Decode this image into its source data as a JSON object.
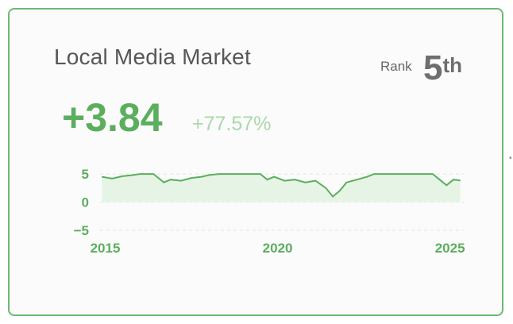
{
  "widget": {
    "title": "Local Media Market",
    "rank_label": "Rank",
    "rank_number": "5",
    "rank_suffix": "th",
    "value": "+3.84",
    "percent_change": "+77.57%"
  },
  "colors": {
    "border": "#6cba6f",
    "accent": "#5bae5e",
    "accent_light": "#a9d8aa",
    "fill": "#e6f4e6"
  },
  "chart_data": {
    "type": "area",
    "yticks": [
      "5",
      "0",
      "−5"
    ],
    "ytick_values": [
      5,
      0,
      -5
    ],
    "xticks": [
      "2015",
      "2020",
      "2025"
    ],
    "xtick_values": [
      2015,
      2020,
      2025
    ],
    "xlim": [
      2014.85,
      2025.4
    ],
    "ylim": [
      -5,
      6
    ],
    "grid": true,
    "series": [
      {
        "points": [
          [
            2014.9,
            4.5
          ],
          [
            2015.2,
            4.2
          ],
          [
            2015.5,
            4.6
          ],
          [
            2015.8,
            4.8
          ],
          [
            2016.0,
            5.0
          ],
          [
            2016.4,
            5.0
          ],
          [
            2016.7,
            3.5
          ],
          [
            2016.9,
            4.0
          ],
          [
            2017.2,
            3.8
          ],
          [
            2017.5,
            4.3
          ],
          [
            2017.8,
            4.5
          ],
          [
            2018.0,
            4.8
          ],
          [
            2018.3,
            5.0
          ],
          [
            2019.5,
            5.0
          ],
          [
            2019.7,
            4.0
          ],
          [
            2019.9,
            4.5
          ],
          [
            2020.2,
            3.8
          ],
          [
            2020.5,
            4.0
          ],
          [
            2020.8,
            3.5
          ],
          [
            2021.1,
            3.8
          ],
          [
            2021.4,
            2.5
          ],
          [
            2021.6,
            1.0
          ],
          [
            2021.8,
            2.0
          ],
          [
            2022.0,
            3.5
          ],
          [
            2022.3,
            4.0
          ],
          [
            2022.6,
            4.5
          ],
          [
            2022.8,
            5.0
          ],
          [
            2024.5,
            5.0
          ],
          [
            2024.7,
            4.0
          ],
          [
            2024.9,
            3.0
          ],
          [
            2025.1,
            4.0
          ],
          [
            2025.3,
            3.84
          ]
        ]
      }
    ]
  }
}
